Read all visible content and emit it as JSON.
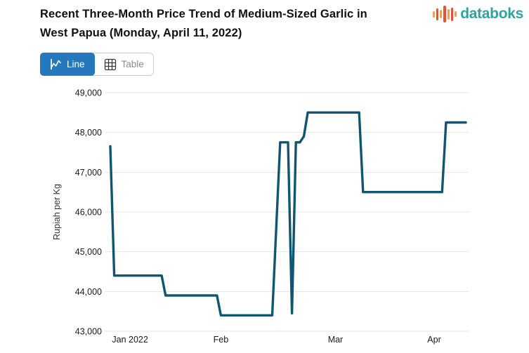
{
  "header": {
    "title": "Recent Three-Month Price Trend of Medium-Sized Garlic in West Papua (Monday, April 11, 2022)",
    "title_lines": [
      "Recent Three-Month Price Trend of Medium-Sized Garlic in",
      "West Papua (Monday, April 11, 2022)"
    ]
  },
  "logo": {
    "text": "databoks",
    "text_color": "#2ea49d",
    "bars": [
      {
        "h": 9,
        "color": "#f59e4c"
      },
      {
        "h": 17,
        "color": "#e84e39"
      },
      {
        "h": 12,
        "color": "#f59e4c"
      },
      {
        "h": 24,
        "color": "#e84e39"
      },
      {
        "h": 15,
        "color": "#f59e4c"
      },
      {
        "h": 19,
        "color": "#e84e39"
      },
      {
        "h": 8,
        "color": "#f59e4c"
      }
    ]
  },
  "toolbar": {
    "line_label": "Line",
    "table_label": "Table",
    "active_color": "#2478bb"
  },
  "chart_data": {
    "type": "line",
    "title": "Recent Three-Month Price Trend of Medium-Sized Garlic in West Papua (Monday, April 11, 2022)",
    "xlabel": "",
    "ylabel": "Rupiah per Kg",
    "ylim": [
      43000,
      49000
    ],
    "grid": "horizontal-only",
    "legend": "none",
    "line_color": "#10566e",
    "grid_color": "#e6e6e6",
    "tick_color": "#1a1a1a",
    "y_ticks": [
      {
        "v": 49000,
        "label": "49,000"
      },
      {
        "v": 48000,
        "label": "48,000"
      },
      {
        "v": 47000,
        "label": "47,000"
      },
      {
        "v": 46000,
        "label": "46,000"
      },
      {
        "v": 45000,
        "label": "45,000"
      },
      {
        "v": 44000,
        "label": "44,000"
      },
      {
        "v": 43000,
        "label": "43,000"
      }
    ],
    "x_ticks": [
      {
        "label": "Jan 2022",
        "day": 5
      },
      {
        "label": "Feb",
        "day": 28
      },
      {
        "label": "Mar",
        "day": 57
      },
      {
        "label": "Apr",
        "day": 82
      }
    ],
    "x_range_days": 90,
    "series": [
      {
        "name": "Medium-sized garlic price, West Papua",
        "unit": "Rupiah per Kg",
        "points": [
          {
            "date": "Jan 11",
            "day": 0,
            "value": 47650
          },
          {
            "date": "Jan 12",
            "day": 1,
            "value": 44400
          },
          {
            "date": "Jan 24",
            "day": 13,
            "value": 44400
          },
          {
            "date": "Jan 25",
            "day": 14,
            "value": 43900
          },
          {
            "date": "Feb 7",
            "day": 27,
            "value": 43900
          },
          {
            "date": "Feb 8",
            "day": 28,
            "value": 43400
          },
          {
            "date": "Feb 21",
            "day": 41,
            "value": 43400
          },
          {
            "date": "Feb 23",
            "day": 43,
            "value": 47750
          },
          {
            "date": "Feb 25",
            "day": 45,
            "value": 47750
          },
          {
            "date": "Feb 26",
            "day": 46,
            "value": 43450
          },
          {
            "date": "Feb 27",
            "day": 47,
            "value": 47750
          },
          {
            "date": "Feb 28",
            "day": 48,
            "value": 47750
          },
          {
            "date": "Mar 1",
            "day": 49,
            "value": 47900
          },
          {
            "date": "Mar 2",
            "day": 50,
            "value": 48500
          },
          {
            "date": "Mar 15",
            "day": 63,
            "value": 48500
          },
          {
            "date": "Mar 16",
            "day": 64,
            "value": 46500
          },
          {
            "date": "Apr 5",
            "day": 84,
            "value": 46500
          },
          {
            "date": "Apr 6",
            "day": 85,
            "value": 48250
          },
          {
            "date": "Apr 11",
            "day": 90,
            "value": 48250
          }
        ]
      }
    ]
  }
}
